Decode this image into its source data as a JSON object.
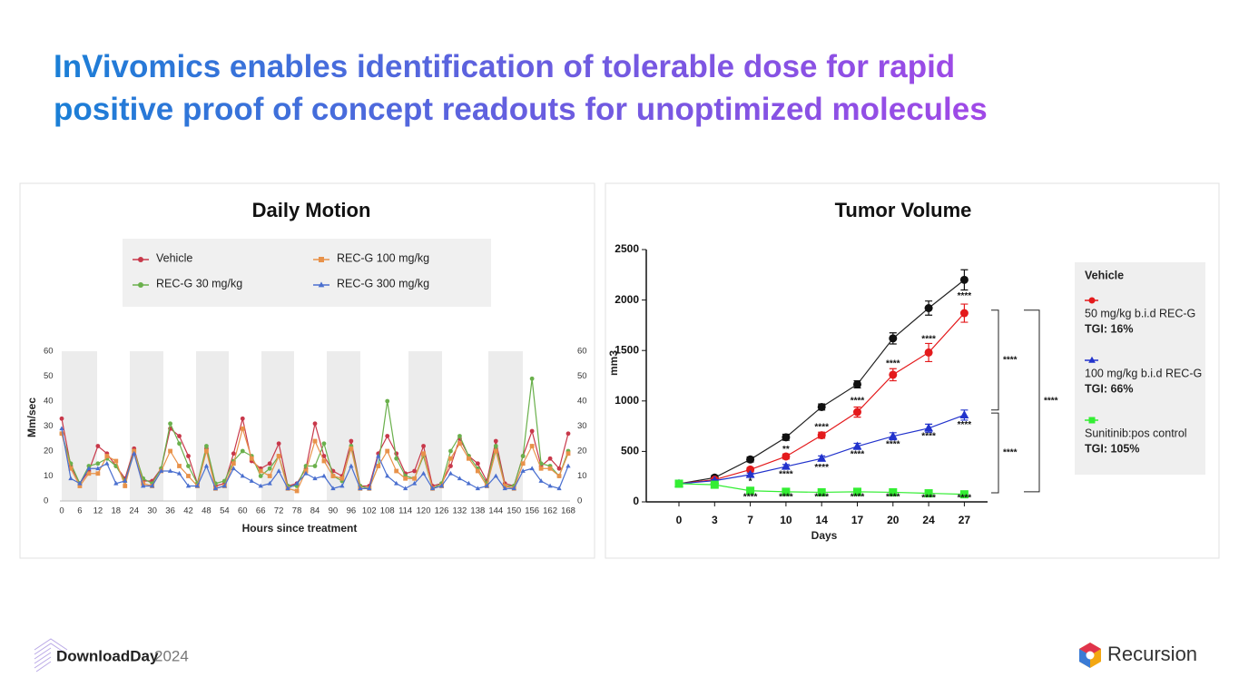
{
  "title": [
    "InVivomics enables identification of tolerable dose for rapid",
    "positive proof of concept readouts for unoptimized molecules"
  ],
  "chart_data": [
    {
      "type": "line",
      "title": "Daily Motion",
      "xlabel": "Hours since treatment",
      "ylabel": "Mm/sec",
      "x": [
        0,
        3,
        6,
        9,
        12,
        15,
        18,
        21,
        24,
        27,
        30,
        33,
        36,
        39,
        42,
        45,
        48,
        51,
        54,
        57,
        60,
        63,
        66,
        69,
        72,
        75,
        78,
        81,
        84,
        87,
        90,
        93,
        96,
        99,
        102,
        105,
        108,
        111,
        114,
        117,
        120,
        123,
        126,
        129,
        132,
        135,
        138,
        141,
        144,
        147,
        150,
        153,
        156,
        159,
        162,
        165,
        168
      ],
      "xlim": [
        0,
        168
      ],
      "xticks": [
        0,
        6,
        12,
        18,
        24,
        30,
        36,
        42,
        48,
        54,
        60,
        66,
        72,
        78,
        84,
        90,
        96,
        102,
        108,
        114,
        120,
        126,
        132,
        138,
        144,
        150,
        156,
        162,
        168
      ],
      "ylim": [
        0,
        60
      ],
      "yticks": [
        0,
        10,
        20,
        30,
        40,
        50,
        60
      ],
      "y2lim": [
        0,
        60
      ],
      "y2ticks": [
        0,
        10,
        20,
        30,
        40,
        50,
        60
      ],
      "series": [
        {
          "name": "Vehicle",
          "color": "#c8384a",
          "marker": "circle",
          "values": [
            33,
            14,
            7,
            12,
            22,
            19,
            14,
            9,
            21,
            8,
            8,
            13,
            29,
            26,
            18,
            7,
            21,
            6,
            7,
            19,
            33,
            16,
            13,
            15,
            23,
            6,
            7,
            13,
            31,
            18,
            12,
            10,
            24,
            6,
            6,
            19,
            26,
            19,
            11,
            12,
            22,
            6,
            7,
            14,
            25,
            18,
            15,
            8,
            24,
            7,
            6,
            18,
            28,
            14,
            17,
            13,
            27
          ]
        },
        {
          "name": "REC-G 30 mg/kg",
          "color": "#6ab04c",
          "marker": "circle",
          "values": [
            27,
            15,
            7,
            14,
            15,
            17,
            14,
            8,
            20,
            9,
            7,
            13,
            31,
            23,
            14,
            7,
            22,
            7,
            8,
            16,
            20,
            18,
            10,
            13,
            18,
            6,
            6,
            14,
            14,
            23,
            10,
            8,
            22,
            6,
            5,
            14,
            40,
            17,
            10,
            9,
            18,
            5,
            7,
            20,
            26,
            18,
            13,
            7,
            22,
            6,
            6,
            18,
            49,
            15,
            14,
            10,
            20
          ]
        },
        {
          "name": "REC-G 100 mg/kg",
          "color": "#e8924a",
          "marker": "square",
          "values": [
            27,
            13,
            6,
            11,
            11,
            18,
            16,
            6,
            20,
            7,
            6,
            12,
            20,
            14,
            10,
            6,
            20,
            5,
            6,
            15,
            29,
            17,
            12,
            10,
            18,
            5,
            4,
            12,
            24,
            16,
            10,
            9,
            21,
            5,
            5,
            14,
            20,
            12,
            9,
            9,
            19,
            5,
            6,
            17,
            23,
            17,
            12,
            6,
            20,
            6,
            5,
            15,
            22,
            13,
            13,
            10,
            19
          ]
        },
        {
          "name": "REC-G 300 mg/kg",
          "color": "#4a6fcf",
          "marker": "triangle",
          "values": [
            29,
            9,
            7,
            13,
            13,
            15,
            7,
            8,
            19,
            6,
            6,
            12,
            12,
            11,
            6,
            6,
            14,
            5,
            6,
            13,
            10,
            8,
            6,
            7,
            12,
            5,
            7,
            11,
            9,
            10,
            5,
            6,
            14,
            5,
            5,
            18,
            10,
            7,
            5,
            7,
            11,
            5,
            6,
            11,
            9,
            7,
            5,
            6,
            10,
            5,
            5,
            12,
            13,
            8,
            6,
            5,
            14
          ]
        }
      ]
    },
    {
      "type": "errorbar",
      "title": "Tumor Volume",
      "xlabel": "Days",
      "ylabel": "mm3",
      "categories": [
        0,
        3,
        7,
        10,
        14,
        17,
        20,
        24,
        27
      ],
      "ylim": [
        0,
        2500
      ],
      "yticks": [
        0,
        500,
        1000,
        1500,
        2000,
        2500
      ],
      "series": [
        {
          "name": "Vehicle",
          "color": "#111111",
          "marker": "circle",
          "values": [
            180,
            240,
            420,
            640,
            940,
            1165,
            1620,
            1920,
            2200
          ],
          "errors": [
            20,
            20,
            25,
            30,
            30,
            35,
            55,
            70,
            100
          ]
        },
        {
          "name": "50 mg/kg b.i.d REC-G",
          "tgi": "TGI: 16%",
          "color": "#e41a1c",
          "marker": "circle",
          "values": [
            180,
            220,
            320,
            450,
            660,
            890,
            1260,
            1480,
            1870
          ],
          "errors": [
            10,
            10,
            20,
            25,
            30,
            50,
            60,
            90,
            90
          ]
        },
        {
          "name": "100 mg/kg b.i.d REC-G",
          "tgi": "TGI: 66%",
          "color": "#2233cc",
          "marker": "triangle",
          "values": [
            180,
            210,
            270,
            350,
            430,
            550,
            650,
            730,
            860
          ],
          "errors": [
            5,
            10,
            15,
            20,
            25,
            30,
            35,
            40,
            50
          ]
        },
        {
          "name": "Sunitinib:pos control",
          "tgi": "TGI: 105%",
          "color": "#33ee33",
          "marker": "square",
          "values": [
            180,
            170,
            110,
            100,
            95,
            100,
            95,
            85,
            75
          ],
          "errors": [
            5,
            5,
            5,
            5,
            5,
            5,
            5,
            5,
            5
          ]
        }
      ],
      "annotations": [
        {
          "day": 7,
          "value": 200,
          "text": "*"
        },
        {
          "day": 10,
          "value": 520,
          "text": "**"
        },
        {
          "day": 10,
          "value": 270,
          "text": "****"
        },
        {
          "day": 14,
          "value": 740,
          "text": "****"
        },
        {
          "day": 14,
          "value": 340,
          "text": "****"
        },
        {
          "day": 17,
          "value": 1000,
          "text": "****"
        },
        {
          "day": 17,
          "value": 470,
          "text": "****"
        },
        {
          "day": 20,
          "value": 1370,
          "text": "****"
        },
        {
          "day": 20,
          "value": 570,
          "text": "****"
        },
        {
          "day": 24,
          "value": 1610,
          "text": "****"
        },
        {
          "day": 24,
          "value": 650,
          "text": "****"
        },
        {
          "day": 27,
          "value": 2040,
          "text": "****"
        },
        {
          "day": 27,
          "value": 760,
          "text": "****"
        },
        {
          "day": 7,
          "value": 45,
          "text": "****"
        },
        {
          "day": 10,
          "value": 45,
          "text": "****"
        },
        {
          "day": 14,
          "value": 45,
          "text": "****"
        },
        {
          "day": 17,
          "value": 45,
          "text": "****"
        },
        {
          "day": 20,
          "value": 45,
          "text": "****"
        },
        {
          "day": 24,
          "value": 35,
          "text": "****"
        },
        {
          "day": 27,
          "value": 35,
          "text": "****"
        }
      ],
      "brackets": [
        {
          "from": 1900,
          "to": 910,
          "label": "****"
        },
        {
          "from": 880,
          "to": 90,
          "label": "****"
        },
        {
          "from": 1900,
          "to": 100,
          "label": "****"
        }
      ]
    }
  ],
  "footer": {
    "event": "DownloadDay",
    "year": "2024",
    "brand": "Recursion"
  }
}
